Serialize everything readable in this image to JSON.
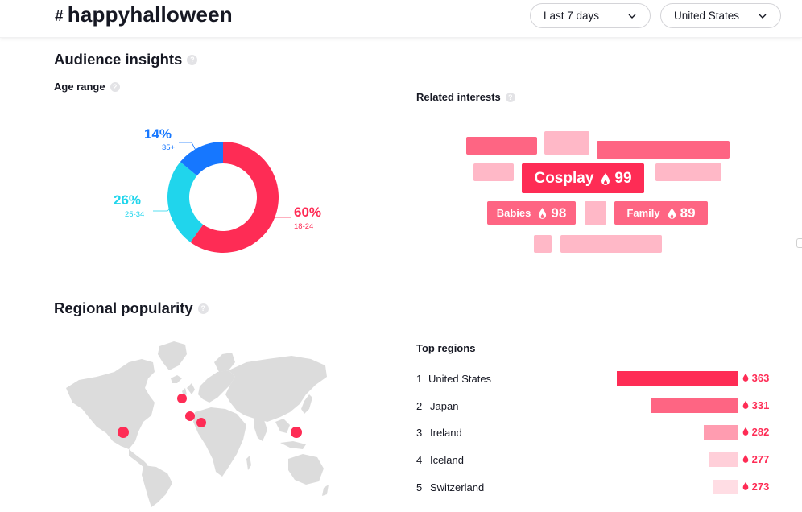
{
  "header": {
    "hash_symbol": "#",
    "hashtag": "happyhalloween",
    "period_dropdown": "Last 7 days",
    "region_dropdown": "United States"
  },
  "audience": {
    "title": "Audience insights",
    "age_range_label": "Age range",
    "segments": [
      {
        "percent": "60%",
        "range": "18-24",
        "value": 60,
        "color": "#fe2c55"
      },
      {
        "percent": "26%",
        "range": "25-34",
        "value": 26,
        "color": "#20d5ec"
      },
      {
        "percent": "14%",
        "range": "35+",
        "value": 14,
        "color": "#1677ff"
      }
    ]
  },
  "interests": {
    "title": "Related interests",
    "tags": [
      {
        "label": "Cosplay",
        "score": "99"
      },
      {
        "label": "Babies",
        "score": "98"
      },
      {
        "label": "Family",
        "score": "89"
      }
    ]
  },
  "regional": {
    "title": "Regional popularity",
    "top_regions_label": "Top regions",
    "regions": [
      {
        "rank": "1",
        "name": "United States",
        "score": "363",
        "value": 363,
        "color": "#fe2c55"
      },
      {
        "rank": "2",
        "name": "Japan",
        "score": "331",
        "value": 331,
        "color": "#fe6583"
      },
      {
        "rank": "3",
        "name": "Ireland",
        "score": "282",
        "value": 282,
        "color": "#ff9cb0"
      },
      {
        "rank": "4",
        "name": "Iceland",
        "score": "277",
        "value": 277,
        "color": "#ffcfd9"
      },
      {
        "rank": "5",
        "name": "Switzerland",
        "score": "273",
        "value": 273,
        "color": "#ffdde4"
      }
    ]
  }
}
